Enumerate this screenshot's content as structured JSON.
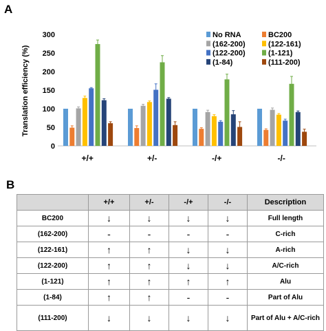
{
  "panel_a": {
    "letter": "A"
  },
  "panel_b": {
    "letter": "B"
  },
  "chart_data": {
    "type": "bar",
    "title": "",
    "xlabel": "",
    "ylabel": "Translation efficiency (%)",
    "ylim": [
      0,
      300
    ],
    "yticks": [
      0,
      50,
      100,
      150,
      200,
      250,
      300
    ],
    "grid": false,
    "legend_placement": "top-right",
    "categories": [
      "+/+",
      "+/-",
      "-/+",
      "-/-"
    ],
    "series": [
      {
        "name": "No RNA",
        "color": "#5b9bd5",
        "values": [
          100,
          100,
          100,
          100
        ],
        "errors": [
          0,
          0,
          0,
          0
        ]
      },
      {
        "name": "BC200",
        "color": "#ed7d31",
        "values": [
          49,
          48,
          46,
          43
        ],
        "errors": [
          5,
          6,
          3,
          3
        ]
      },
      {
        "name": "(162-200)",
        "color": "#a5a5a5",
        "values": [
          101,
          108,
          91,
          97
        ],
        "errors": [
          4,
          4,
          5,
          5
        ]
      },
      {
        "name": "(122-161)",
        "color": "#ffc000",
        "values": [
          129,
          118,
          80,
          84
        ],
        "errors": [
          5,
          3,
          4,
          3
        ]
      },
      {
        "name": "(122-200)",
        "color": "#4472c4",
        "values": [
          155,
          151,
          65,
          68
        ],
        "errors": [
          2,
          16,
          3,
          4
        ]
      },
      {
        "name": "(1-121)",
        "color": "#70ad47",
        "values": [
          274,
          225,
          179,
          167
        ],
        "errors": [
          11,
          18,
          14,
          20
        ]
      },
      {
        "name": "(1-84)",
        "color": "#264478",
        "values": [
          123,
          127,
          85,
          91
        ],
        "errors": [
          4,
          3,
          10,
          3
        ]
      },
      {
        "name": "(111-200)",
        "color": "#9e480e",
        "values": [
          61,
          56,
          51,
          38
        ],
        "errors": [
          4,
          9,
          14,
          7
        ]
      }
    ]
  },
  "table": {
    "headers": [
      "",
      "+/+",
      "+/-",
      "-/+",
      "-/-",
      "Description"
    ],
    "rows": [
      {
        "name": "BC200",
        "cells": [
          "↓",
          "↓",
          "↓",
          "↓"
        ],
        "description": "Full length"
      },
      {
        "name": "(162-200)",
        "cells": [
          "-",
          "-",
          "-",
          "-"
        ],
        "description": "C-rich"
      },
      {
        "name": "(122-161)",
        "cells": [
          "↑",
          "↑",
          "↓",
          "↓"
        ],
        "description": "A-rich"
      },
      {
        "name": "(122-200)",
        "cells": [
          "↑",
          "↑",
          "↓",
          "↓"
        ],
        "description": "A/C-rich"
      },
      {
        "name": "(1-121)",
        "cells": [
          "↑",
          "↑",
          "↑",
          "↑"
        ],
        "description": "Alu"
      },
      {
        "name": "(1-84)",
        "cells": [
          "↑",
          "↑",
          "-",
          "-"
        ],
        "description": "Part of Alu"
      },
      {
        "name": "(111-200)",
        "cells": [
          "↓",
          "↓",
          "↓",
          "↓"
        ],
        "description": "Part of Alu + A/C-rich"
      }
    ]
  }
}
